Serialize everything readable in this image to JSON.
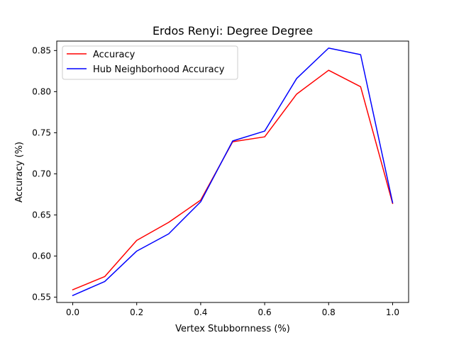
{
  "chart_data": {
    "type": "line",
    "title": "Erdos Renyi: Degree Degree",
    "xlabel": "Vertex Stubbornness (%)",
    "ylabel": "Accuracy (%)",
    "xlim": [
      -0.05,
      1.05
    ],
    "ylim": [
      0.5435,
      0.8615
    ],
    "xticks": [
      0.0,
      0.2,
      0.4,
      0.6,
      0.8,
      1.0
    ],
    "xtick_labels": [
      "0.0",
      "0.2",
      "0.4",
      "0.6",
      "0.8",
      "1.0"
    ],
    "yticks": [
      0.55,
      0.6,
      0.65,
      0.7,
      0.75,
      0.8,
      0.85
    ],
    "ytick_labels": [
      "0.55",
      "0.60",
      "0.65",
      "0.70",
      "0.75",
      "0.80",
      "0.85"
    ],
    "x": [
      0.0,
      0.1,
      0.2,
      0.3,
      0.4,
      0.5,
      0.6,
      0.7,
      0.8,
      0.9,
      1.0
    ],
    "series": [
      {
        "name": "Accuracy",
        "color": "#ff0000",
        "values": [
          0.559,
          0.575,
          0.619,
          0.641,
          0.668,
          0.739,
          0.745,
          0.797,
          0.826,
          0.806,
          0.664
        ]
      },
      {
        "name": "Hub Neighborhood Accuracy",
        "color": "#0000ff",
        "values": [
          0.552,
          0.569,
          0.606,
          0.627,
          0.666,
          0.74,
          0.752,
          0.816,
          0.853,
          0.845,
          0.665
        ]
      }
    ],
    "grid": false,
    "legend_position": "top-left"
  }
}
